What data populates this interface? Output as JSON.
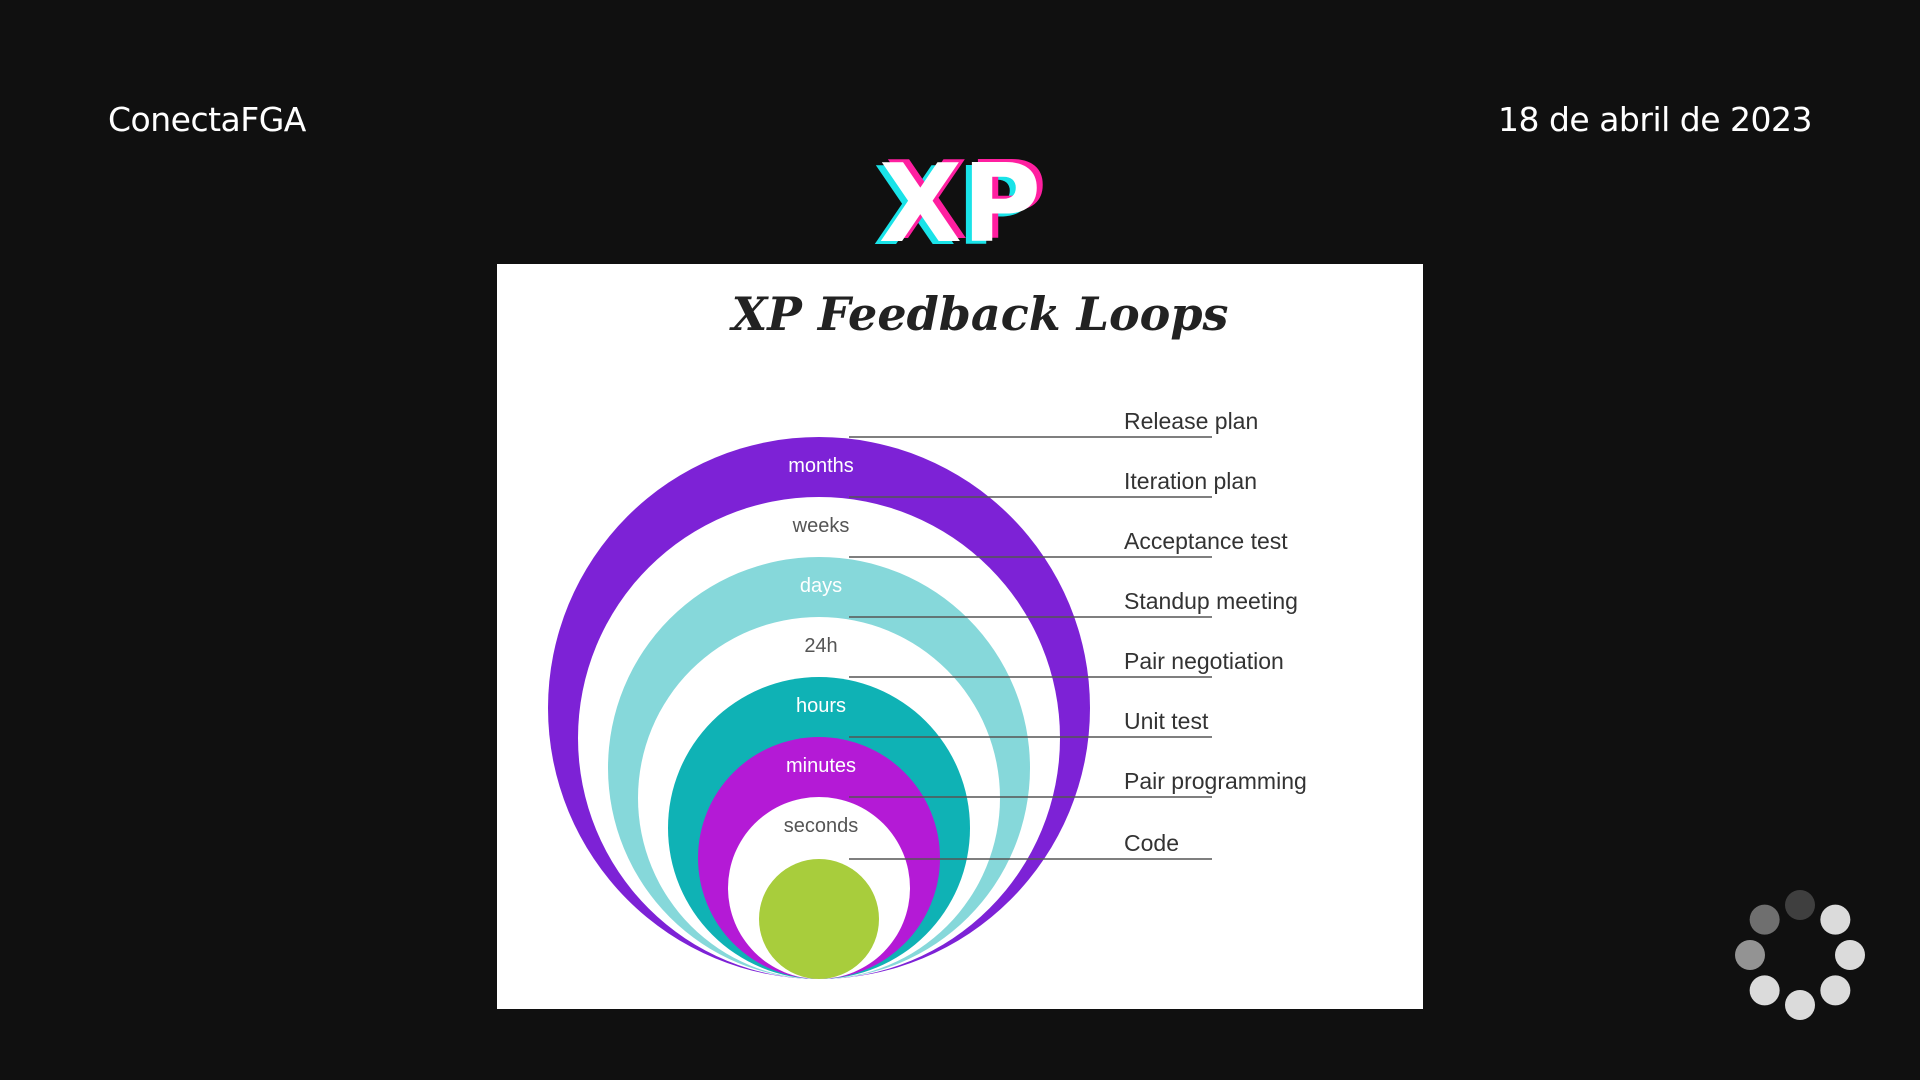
{
  "header": {
    "org": "ConectaFGA",
    "date": "18 de abril de 2023"
  },
  "slide": {
    "title": "XP",
    "title_colors": {
      "fill": "#ffffff",
      "shadow_cyan": "#19e3e8",
      "shadow_magenta": "#ff1fa0"
    }
  },
  "figure": {
    "title": "XP Feedback Loops",
    "loops": [
      {
        "ring_label": "months",
        "practice": "Release plan",
        "color": "#7d22d6",
        "text_color": "#ffffff"
      },
      {
        "ring_label": "weeks",
        "practice": "Iteration plan",
        "color": "#ffffff",
        "text_color": "#555555"
      },
      {
        "ring_label": "days",
        "practice": "Acceptance test",
        "color": "#86d8da",
        "text_color": "#ffffff"
      },
      {
        "ring_label": "24h",
        "practice": "Standup meeting",
        "color": "#ffffff",
        "text_color": "#555555"
      },
      {
        "ring_label": "hours",
        "practice": "Pair negotiation",
        "color": "#0fb2b5",
        "text_color": "#ffffff"
      },
      {
        "ring_label": "minutes",
        "practice": "Unit test",
        "color": "#b41ad6",
        "text_color": "#ffffff"
      },
      {
        "ring_label": "seconds",
        "practice": "Pair programming",
        "color": "#ffffff",
        "text_color": "#555555"
      },
      {
        "ring_label": "",
        "practice": "Code",
        "color": "#a8cd3c",
        "text_color": "#ffffff"
      }
    ]
  },
  "spinner": {
    "icon": "loading-spinner-icon",
    "color": "#ffffff"
  }
}
